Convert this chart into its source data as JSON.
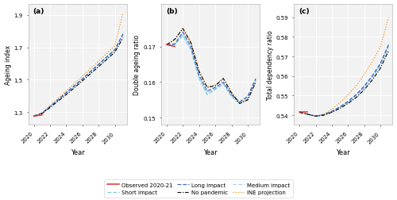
{
  "years": [
    2020,
    2021,
    2022,
    2023,
    2024,
    2025,
    2026,
    2027,
    2028,
    2029,
    2030,
    2031
  ],
  "years_obs": [
    2020,
    2021
  ],
  "ageing_observed": [
    1.275,
    1.282
  ],
  "ageing_no_pandemic": [
    1.275,
    1.29,
    1.328,
    1.368,
    1.408,
    1.45,
    1.493,
    1.537,
    1.581,
    1.625,
    1.67,
    1.758
  ],
  "ageing_short": [
    1.275,
    1.292,
    1.332,
    1.373,
    1.415,
    1.458,
    1.501,
    1.545,
    1.59,
    1.634,
    1.68,
    1.775
  ],
  "ageing_medium": [
    1.275,
    1.293,
    1.334,
    1.376,
    1.418,
    1.461,
    1.504,
    1.548,
    1.593,
    1.638,
    1.683,
    1.78
  ],
  "ageing_long": [
    1.275,
    1.294,
    1.335,
    1.377,
    1.42,
    1.463,
    1.506,
    1.551,
    1.596,
    1.641,
    1.686,
    1.783
  ],
  "ageing_ine": [
    1.275,
    1.295,
    1.34,
    1.385,
    1.431,
    1.477,
    1.522,
    1.568,
    1.615,
    1.662,
    1.71,
    1.912
  ],
  "double_observed": [
    0.1705,
    0.17
  ],
  "double_no_pandemic": [
    0.1705,
    0.172,
    0.175,
    0.171,
    0.163,
    0.1585,
    0.159,
    0.161,
    0.157,
    0.154,
    0.155,
    0.16
  ],
  "double_short": [
    0.1705,
    0.1705,
    0.173,
    0.169,
    0.161,
    0.1565,
    0.158,
    0.1595,
    0.156,
    0.154,
    0.1555,
    0.1605
  ],
  "double_medium": [
    0.1705,
    0.1706,
    0.1735,
    0.1695,
    0.1615,
    0.157,
    0.1582,
    0.1597,
    0.1562,
    0.1542,
    0.1557,
    0.1607
  ],
  "double_long": [
    0.1705,
    0.1707,
    0.174,
    0.17,
    0.162,
    0.1575,
    0.1585,
    0.16,
    0.1565,
    0.1545,
    0.156,
    0.161
  ],
  "double_ine": [
    0.1705,
    0.1718,
    0.1752,
    0.1712,
    0.1632,
    0.1587,
    0.1592,
    0.1612,
    0.1572,
    0.1542,
    0.1553,
    0.1603
  ],
  "dep_observed": [
    0.5415,
    0.5415
  ],
  "dep_no_pandemic": [
    0.5415,
    0.5405,
    0.5395,
    0.54,
    0.5415,
    0.5435,
    0.546,
    0.549,
    0.553,
    0.558,
    0.564,
    0.573
  ],
  "dep_short": [
    0.5415,
    0.5405,
    0.5395,
    0.54,
    0.5415,
    0.5438,
    0.5465,
    0.5498,
    0.554,
    0.5592,
    0.5655,
    0.575
  ],
  "dep_medium": [
    0.5415,
    0.5405,
    0.5395,
    0.5402,
    0.5418,
    0.5441,
    0.5468,
    0.5502,
    0.5545,
    0.5598,
    0.566,
    0.5755
  ],
  "dep_long": [
    0.5415,
    0.5405,
    0.5395,
    0.5403,
    0.542,
    0.5443,
    0.5471,
    0.5505,
    0.5549,
    0.5602,
    0.5665,
    0.576
  ],
  "dep_ine": [
    0.5415,
    0.5405,
    0.5395,
    0.5405,
    0.543,
    0.5465,
    0.5505,
    0.555,
    0.5608,
    0.5673,
    0.575,
    0.59
  ],
  "color_observed": "#e03030",
  "color_no_pandemic": "#111111",
  "color_short": "#7ac8e0",
  "color_medium": "#a0d8e8",
  "color_long": "#4060c0",
  "color_ine": "#f0a030",
  "panel_a_ylim": [
    1.22,
    1.97
  ],
  "panel_a_yticks": [
    1.3,
    1.5,
    1.7,
    1.9
  ],
  "panel_b_ylim": [
    0.148,
    0.182
  ],
  "panel_b_yticks": [
    0.15,
    0.16,
    0.17
  ],
  "panel_c_ylim": [
    0.535,
    0.597
  ],
  "panel_c_yticks": [
    0.54,
    0.55,
    0.56,
    0.57,
    0.58,
    0.59
  ],
  "xlabel": "Year",
  "ylabel_a": "Ageing index",
  "ylabel_b": "Double ageing ratio",
  "ylabel_c": "Total dependency ratio",
  "panel_bg": "#f2f2f2",
  "grid_color": "#ffffff"
}
